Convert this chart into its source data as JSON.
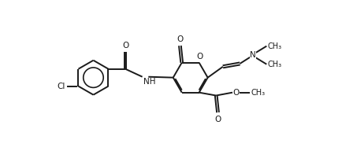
{
  "bg_color": "#ffffff",
  "line_color": "#1a1a1a",
  "line_width": 1.4,
  "font_size": 7.5,
  "figsize": [
    4.34,
    1.87
  ],
  "dpi": 100,
  "xlim": [
    0.0,
    4.34
  ],
  "ylim": [
    0.0,
    1.87
  ]
}
